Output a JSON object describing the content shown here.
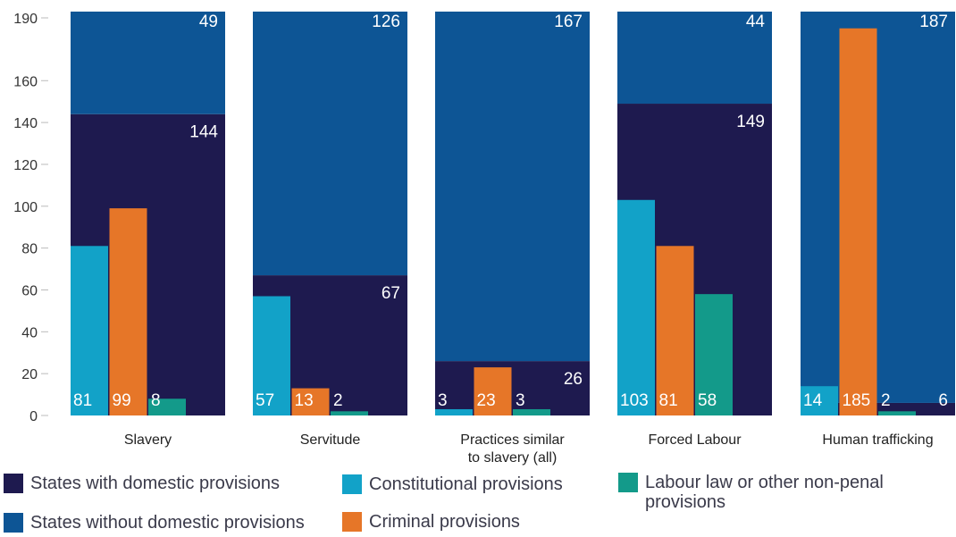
{
  "colors": {
    "with": "#1e1a4f",
    "without": "#0d5595",
    "constitutional": "#12a2c8",
    "criminal": "#e67628",
    "labour": "#139a8a",
    "axis_text": "#333333",
    "tick": "#bbbbbb"
  },
  "chart_data": {
    "type": "bar",
    "ylim": [
      0,
      190
    ],
    "yticks": [
      0,
      20,
      40,
      60,
      80,
      100,
      120,
      140,
      160,
      190
    ],
    "categories": [
      "Slavery",
      "Servitude",
      "Practices similar\nto slavery (all)",
      "Forced Labour",
      "Human trafficking"
    ],
    "stack_series": [
      {
        "key": "with",
        "name": "States with domestic provisions",
        "values": [
          144,
          67,
          26,
          149,
          6
        ]
      },
      {
        "key": "without",
        "name": "States without domestic provisions",
        "values": [
          49,
          126,
          167,
          44,
          187
        ]
      }
    ],
    "sub_series": [
      {
        "key": "constitutional",
        "name": "Constitutional provisions",
        "values": [
          81,
          57,
          3,
          103,
          14
        ]
      },
      {
        "key": "criminal",
        "name": "Criminal provisions",
        "values": [
          99,
          13,
          23,
          81,
          185
        ]
      },
      {
        "key": "labour",
        "name": "Labour law or other non-penal\nprovisions",
        "values": [
          8,
          2,
          3,
          58,
          2
        ]
      }
    ]
  },
  "legend": [
    {
      "key": "with",
      "label": "States with domestic provisions"
    },
    {
      "key": "constitutional",
      "label": "Constitutional provisions"
    },
    {
      "key": "labour",
      "label": "Labour law or other non-penal\nprovisions"
    },
    {
      "key": "without",
      "label": "States without domestic provisions"
    },
    {
      "key": "criminal",
      "label": "Criminal provisions"
    }
  ]
}
